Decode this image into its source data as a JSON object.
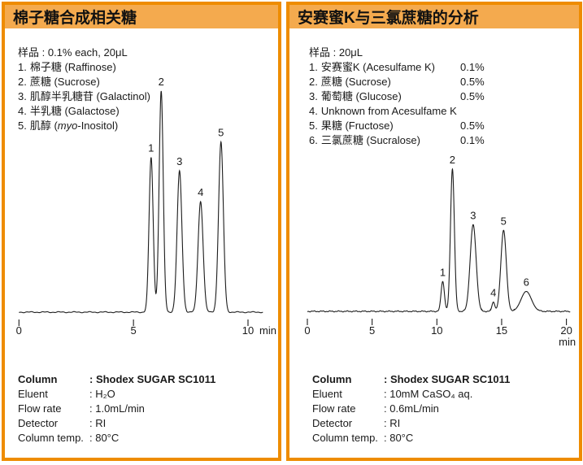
{
  "colors": {
    "panel_border": "#ee8c00",
    "header_band": "#f4aa4e",
    "trace": "#1c1c1c"
  },
  "panels": [
    {
      "title": "棉子糖合成相关糖",
      "sample_header": "样品 : 0.1% each, 20μL",
      "sample_items": [
        {
          "num": "1.",
          "name": "棉子糖 (Raffinose)",
          "conc": ""
        },
        {
          "num": "2.",
          "name": "蔗糖 (Sucrose)",
          "conc": ""
        },
        {
          "num": "3.",
          "name": "肌醇半乳糖苷 (Galactinol)",
          "conc": ""
        },
        {
          "num": "4.",
          "name": "半乳糖 (Galactose)",
          "conc": ""
        },
        {
          "num": "5.",
          "name": "肌醇 (myo-Inositol)",
          "conc": "",
          "italic_word": "myo"
        }
      ],
      "conditions": [
        {
          "label": "Column",
          "value": ": Shodex SUGAR SC1011",
          "bold": true
        },
        {
          "label": "Eluent",
          "value": ": H₂O",
          "bold": false
        },
        {
          "label": "Flow rate",
          "value": ": 1.0mL/min",
          "bold": false
        },
        {
          "label": "Detector",
          "value": ": RI",
          "bold": false
        },
        {
          "label": "Column temp.",
          "value": ": 80°C",
          "bold": false
        }
      ]
    },
    {
      "title": "安赛蜜K与三氯蔗糖的分析",
      "sample_header": "样品 : 20μL",
      "sample_items": [
        {
          "num": "1.",
          "name": "安赛蜜K (Acesulfame K)",
          "conc": "0.1%"
        },
        {
          "num": "2.",
          "name": "蔗糖 (Sucrose)",
          "conc": "0.5%"
        },
        {
          "num": "3.",
          "name": "葡萄糖 (Glucose)",
          "conc": "0.5%"
        },
        {
          "num": "4.",
          "name": "Unknown from Acesulfame K",
          "conc": ""
        },
        {
          "num": "5.",
          "name": "果糖 (Fructose)",
          "conc": "0.5%"
        },
        {
          "num": "6.",
          "name": "三氯蔗糖 (Sucralose)",
          "conc": "0.1%"
        }
      ],
      "conditions": [
        {
          "label": "Column",
          "value": ": Shodex SUGAR SC1011",
          "bold": true
        },
        {
          "label": "Eluent",
          "value": ": 10mM CaSO₄ aq.",
          "bold": false
        },
        {
          "label": "Flow rate",
          "value": ": 0.6mL/min",
          "bold": false
        },
        {
          "label": "Detector",
          "value": ": RI",
          "bold": false
        },
        {
          "label": "Column temp.",
          "value": ": 80°C",
          "bold": false
        }
      ]
    }
  ],
  "chart_data": [
    {
      "type": "line",
      "title": "棉子糖合成相关糖 chromatogram",
      "xlabel": "min",
      "detector": "RI",
      "x_ticks": [
        0,
        5,
        10
      ],
      "x_range": [
        0,
        10.65
      ],
      "grid": false,
      "peaks": [
        {
          "label": "1",
          "compound": "棉子糖 (Raffinose)",
          "time_min": 5.77,
          "rel_height": 0.7,
          "sigma_min": 0.09
        },
        {
          "label": "2",
          "compound": "蔗糖 (Sucrose)",
          "time_min": 6.21,
          "rel_height": 1.0,
          "sigma_min": 0.09
        },
        {
          "label": "3",
          "compound": "肌醇半乳糖苷 (Galactinol)",
          "time_min": 7.01,
          "rel_height": 0.64,
          "sigma_min": 0.105
        },
        {
          "label": "4",
          "compound": "半乳糖 (Galactose)",
          "time_min": 7.93,
          "rel_height": 0.5,
          "sigma_min": 0.11
        },
        {
          "label": "5",
          "compound": "肌醇 (myo-Inositol)",
          "time_min": 8.82,
          "rel_height": 0.77,
          "sigma_min": 0.105
        }
      ]
    },
    {
      "type": "line",
      "title": "安赛蜜K与三氯蔗糖的分析 chromatogram",
      "xlabel": "min",
      "detector": "RI",
      "x_ticks": [
        0,
        5,
        10,
        15,
        20
      ],
      "x_range": [
        0,
        20.3
      ],
      "grid": false,
      "peaks": [
        {
          "label": "1",
          "compound": "安赛蜜K (Acesulfame K)",
          "time_min": 10.45,
          "rel_height": 0.21,
          "sigma_min": 0.13
        },
        {
          "label": "2",
          "compound": "蔗糖 (Sucrose)",
          "time_min": 11.2,
          "rel_height": 1.0,
          "sigma_min": 0.15
        },
        {
          "label": "3",
          "compound": "葡萄糖 (Glucose)",
          "time_min": 12.8,
          "rel_height": 0.61,
          "sigma_min": 0.23
        },
        {
          "label": "4",
          "compound": "Unknown from Acesulfame K",
          "time_min": 14.36,
          "rel_height": 0.065,
          "sigma_min": 0.11
        },
        {
          "label": "5",
          "compound": "果糖 (Fructose)",
          "time_min": 15.15,
          "rel_height": 0.57,
          "sigma_min": 0.21
        },
        {
          "label": "6",
          "compound": "三氯蔗糖 (Sucralose)",
          "time_min": 16.9,
          "rel_height": 0.14,
          "sigma_min": 0.4
        }
      ]
    }
  ]
}
